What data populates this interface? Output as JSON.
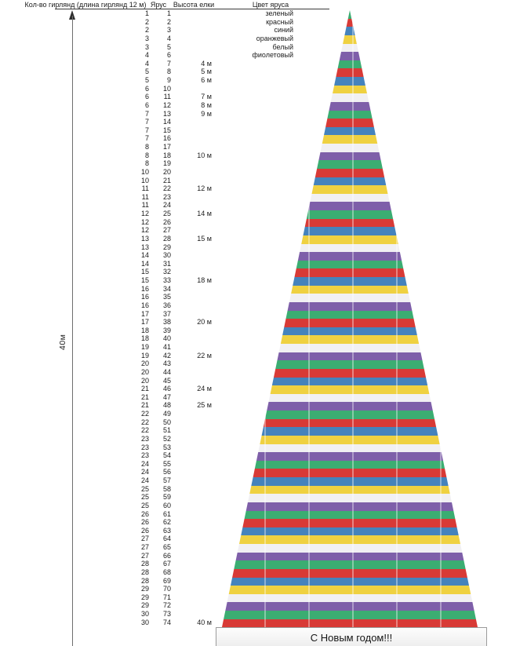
{
  "header": {
    "col_garlands": "Кол-во гирлянд (длина гирлянд 12 м)",
    "col_tier": "Ярус",
    "col_height": "Высота елки",
    "col_color": "Цвет яруса"
  },
  "scale": {
    "total_height_label": "40м"
  },
  "banner": {
    "text": "С Новым годом!!!"
  },
  "chart_data": {
    "type": "table",
    "title": "С Новым годом!!!",
    "columns": [
      "Кол-во гирлянд (длина гирлянд 12 м)",
      "Ярус",
      "Высота елки",
      "Цвет яруса"
    ],
    "tier_count": 74,
    "tree_total_height_label": "40м",
    "garlands_per_tier": [
      1,
      2,
      2,
      3,
      3,
      4,
      4,
      5,
      5,
      6,
      6,
      6,
      7,
      7,
      7,
      7,
      8,
      8,
      8,
      10,
      10,
      11,
      11,
      11,
      12,
      12,
      12,
      13,
      13,
      14,
      14,
      15,
      15,
      16,
      16,
      16,
      17,
      17,
      18,
      18,
      19,
      19,
      20,
      20,
      20,
      21,
      21,
      21,
      22,
      22,
      22,
      23,
      23,
      23,
      24,
      24,
      24,
      25,
      25,
      25,
      26,
      26,
      26,
      27,
      27,
      27,
      28,
      28,
      28,
      29,
      29,
      29,
      30,
      30
    ],
    "height_marks_by_tier": {
      "7": "4 м",
      "8": "5 м",
      "9": "6 м",
      "11": "7 м",
      "12": "8 м",
      "13": "9 м",
      "18": "10 м",
      "22": "12 м",
      "25": "14 м",
      "28": "15 м",
      "33": "18 м",
      "38": "20 м",
      "42": "22 м",
      "46": "24 м",
      "48": "25 м",
      "74": "40 м"
    },
    "color_cycle_names": [
      "зеленый",
      "красный",
      "синий",
      "оранжевый",
      "белый",
      "фиолетовый"
    ],
    "color_cycle_semantic": [
      "green",
      "red",
      "blue",
      "orange",
      "white",
      "violet"
    ],
    "palette": {
      "зеленый": "#3BAD72",
      "красный": "#D83A36",
      "синий": "#4583BC",
      "оранжевый": "#EFD141",
      "белый": "#F1F0F3",
      "фиолетовый": "#7E5FA9"
    }
  }
}
